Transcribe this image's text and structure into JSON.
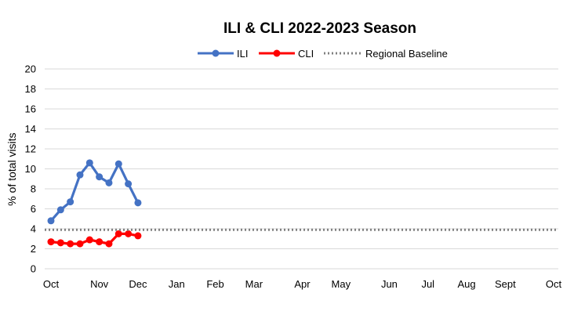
{
  "chart_data": {
    "type": "line",
    "title": "ILI & CLI 2022-2023 Season",
    "ylabel": "% of total visits",
    "xlabel": "",
    "ylim": [
      0,
      20
    ],
    "yticks": [
      0,
      2,
      4,
      6,
      8,
      10,
      12,
      14,
      16,
      18,
      20
    ],
    "grid": true,
    "legend_position": "top",
    "x_month_labels": [
      "Oct",
      "Nov",
      "Dec",
      "Jan",
      "Feb",
      "Mar",
      "Apr",
      "May",
      "Jun",
      "Jul",
      "Aug",
      "Sept",
      "Oct"
    ],
    "x_label_weeks": [
      0,
      5,
      9,
      13,
      17,
      21,
      26,
      30,
      35,
      39,
      43,
      47,
      52
    ],
    "x_range_weeks": [
      0,
      52
    ],
    "series": [
      {
        "name": "ILI",
        "color": "#4472c4",
        "style": "line-marker",
        "x_weeks": [
          0,
          1,
          2,
          3,
          4,
          5,
          6,
          7,
          8,
          9
        ],
        "values": [
          4.8,
          5.9,
          6.7,
          9.4,
          10.6,
          9.2,
          8.6,
          10.5,
          8.5,
          6.6
        ]
      },
      {
        "name": "CLI",
        "color": "#ff0000",
        "style": "line-marker",
        "x_weeks": [
          0,
          1,
          2,
          3,
          4,
          5,
          6,
          7,
          8,
          9
        ],
        "values": [
          2.7,
          2.6,
          2.5,
          2.5,
          2.9,
          2.7,
          2.5,
          3.5,
          3.5,
          3.3
        ]
      },
      {
        "name": "Regional Baseline",
        "color": "#808080",
        "style": "dotted",
        "value": 3.9
      }
    ]
  }
}
